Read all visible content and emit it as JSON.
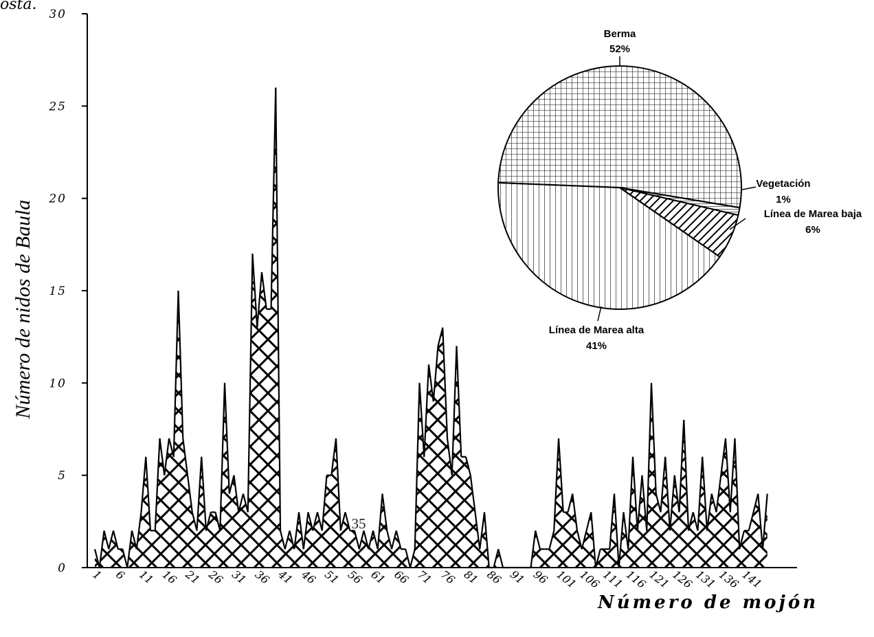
{
  "fragment_text": "osta.",
  "page_number": "35",
  "chart_data": [
    {
      "type": "area",
      "xlabel": "Número de mojón",
      "ylabel": "Número de nidos de Baula",
      "ylim": [
        0,
        30
      ],
      "y_ticks": [
        "0",
        "5",
        "10",
        "15",
        "20",
        "25",
        "30"
      ],
      "x_tick_labels": [
        "1",
        "6",
        "11",
        "16",
        "21",
        "26",
        "31",
        "36",
        "41",
        "46",
        "51",
        "56",
        "61",
        "66",
        "71",
        "76",
        "81",
        "86",
        "91",
        "96",
        "101",
        "106",
        "111",
        "116",
        "121",
        "126",
        "131",
        "136",
        "141"
      ],
      "grid": false,
      "x": [
        1,
        2,
        3,
        4,
        5,
        6,
        7,
        8,
        9,
        10,
        11,
        12,
        13,
        14,
        15,
        16,
        17,
        18,
        19,
        20,
        21,
        22,
        23,
        24,
        25,
        26,
        27,
        28,
        29,
        30,
        31,
        32,
        33,
        34,
        35,
        36,
        37,
        38,
        39,
        40,
        41,
        42,
        43,
        44,
        45,
        46,
        47,
        48,
        49,
        50,
        51,
        52,
        53,
        54,
        55,
        56,
        57,
        58,
        59,
        60,
        61,
        62,
        63,
        64,
        65,
        66,
        67,
        68,
        69,
        70,
        71,
        72,
        73,
        74,
        75,
        76,
        77,
        78,
        79,
        80,
        81,
        82,
        83,
        84,
        85,
        86,
        87,
        88,
        89,
        90,
        91,
        92,
        93,
        94,
        95,
        96,
        97,
        98,
        99,
        100,
        101,
        102,
        103,
        104,
        105,
        106,
        107,
        108,
        109,
        110,
        111,
        112,
        113,
        114,
        115,
        116,
        117,
        118,
        119,
        120,
        121,
        122,
        123,
        124,
        125,
        126,
        127,
        128,
        129,
        130,
        131,
        132,
        133,
        134,
        135,
        136,
        137,
        138,
        139,
        140,
        141,
        142,
        143,
        144,
        145,
        146
      ],
      "values": [
        1,
        0,
        2,
        1,
        2,
        1,
        1,
        0,
        2,
        1,
        3,
        6,
        2,
        2,
        7,
        5,
        7,
        6,
        15,
        7,
        5,
        3,
        2,
        6,
        2,
        3,
        3,
        2,
        10,
        4,
        5,
        3,
        4,
        3,
        17,
        13,
        16,
        14,
        14,
        26,
        2,
        1,
        2,
        1,
        3,
        1,
        3,
        2,
        3,
        2,
        5,
        5,
        7,
        2,
        3,
        2,
        2,
        1,
        2,
        1,
        2,
        1,
        4,
        2,
        1,
        2,
        1,
        1,
        0,
        1,
        10,
        6,
        11,
        9,
        12,
        13,
        7,
        5,
        12,
        6,
        6,
        5,
        3,
        1,
        3,
        0,
        0,
        1,
        0,
        0,
        0,
        0,
        0,
        0,
        0,
        2,
        1,
        1,
        1,
        2,
        7,
        3,
        3,
        4,
        2,
        1,
        2,
        3,
        0,
        1,
        1,
        1,
        4,
        0,
        3,
        1,
        6,
        2,
        5,
        2,
        10,
        4,
        3,
        6,
        2,
        5,
        3,
        8,
        2,
        3,
        2,
        6,
        2,
        4,
        3,
        5,
        7,
        3,
        7,
        1,
        2,
        2,
        3,
        4,
        1,
        4
      ],
      "hatch": "cross-hatch"
    },
    {
      "type": "pie",
      "slices": [
        {
          "label": "Berma",
          "value": 52,
          "value_label": "52%",
          "pattern": "grid"
        },
        {
          "label": "Vegetación",
          "value": 1,
          "value_label": "1%",
          "pattern": "horizontal-lines"
        },
        {
          "label": "Línea de Marea baja",
          "value": 6,
          "value_label": "6%",
          "pattern": "diagonal-lines"
        },
        {
          "label": "Línea de Marea alta",
          "value": 41,
          "value_label": "41%",
          "pattern": "vertical-lines"
        }
      ]
    }
  ]
}
